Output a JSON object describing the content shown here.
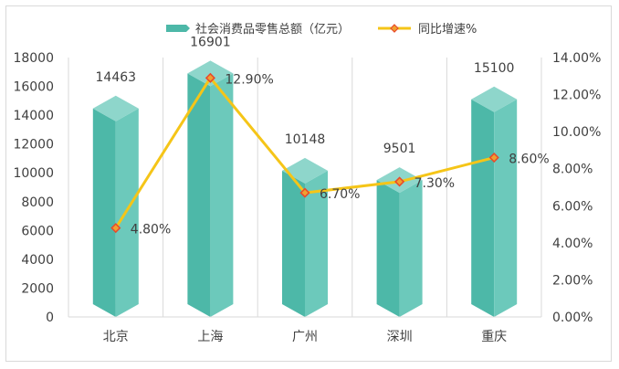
{
  "chart_data": {
    "type": "bar",
    "categories": [
      "北京",
      "上海",
      "广州",
      "深圳",
      "重庆"
    ],
    "series": [
      {
        "name": "社会消费品零售总额（亿元）",
        "kind": "bar",
        "axis": "left",
        "values": [
          14463,
          16901,
          10148,
          9501,
          15100
        ],
        "labels": [
          "14463",
          "16901",
          "10148",
          "9501",
          "15100"
        ]
      },
      {
        "name": "同比增速%",
        "kind": "line",
        "axis": "right",
        "values": [
          4.8,
          12.9,
          6.7,
          7.3,
          8.6
        ],
        "labels": [
          "4.80%",
          "12.90%",
          "6.70%",
          "7.30%",
          "8.60%"
        ]
      }
    ],
    "y_left": {
      "min": 0,
      "max": 18000,
      "ticks": [
        "0",
        "2000",
        "4000",
        "6000",
        "8000",
        "10000",
        "12000",
        "14000",
        "16000",
        "18000"
      ]
    },
    "y_right": {
      "min": 0,
      "max": 14,
      "ticks": [
        "0.00%",
        "2.00%",
        "4.00%",
        "6.00%",
        "8.00%",
        "10.00%",
        "12.00%",
        "14.00%"
      ]
    },
    "legend_position": "top",
    "grid": "vertical",
    "colors": {
      "bar": "#4db8a8",
      "bar_top": "#8ed6cb",
      "bar_light": "#6cc9bb",
      "line": "#f5c518",
      "marker": "#e8492b",
      "marker_fill": "#f0a030",
      "grid": "#d9d9d9"
    }
  }
}
